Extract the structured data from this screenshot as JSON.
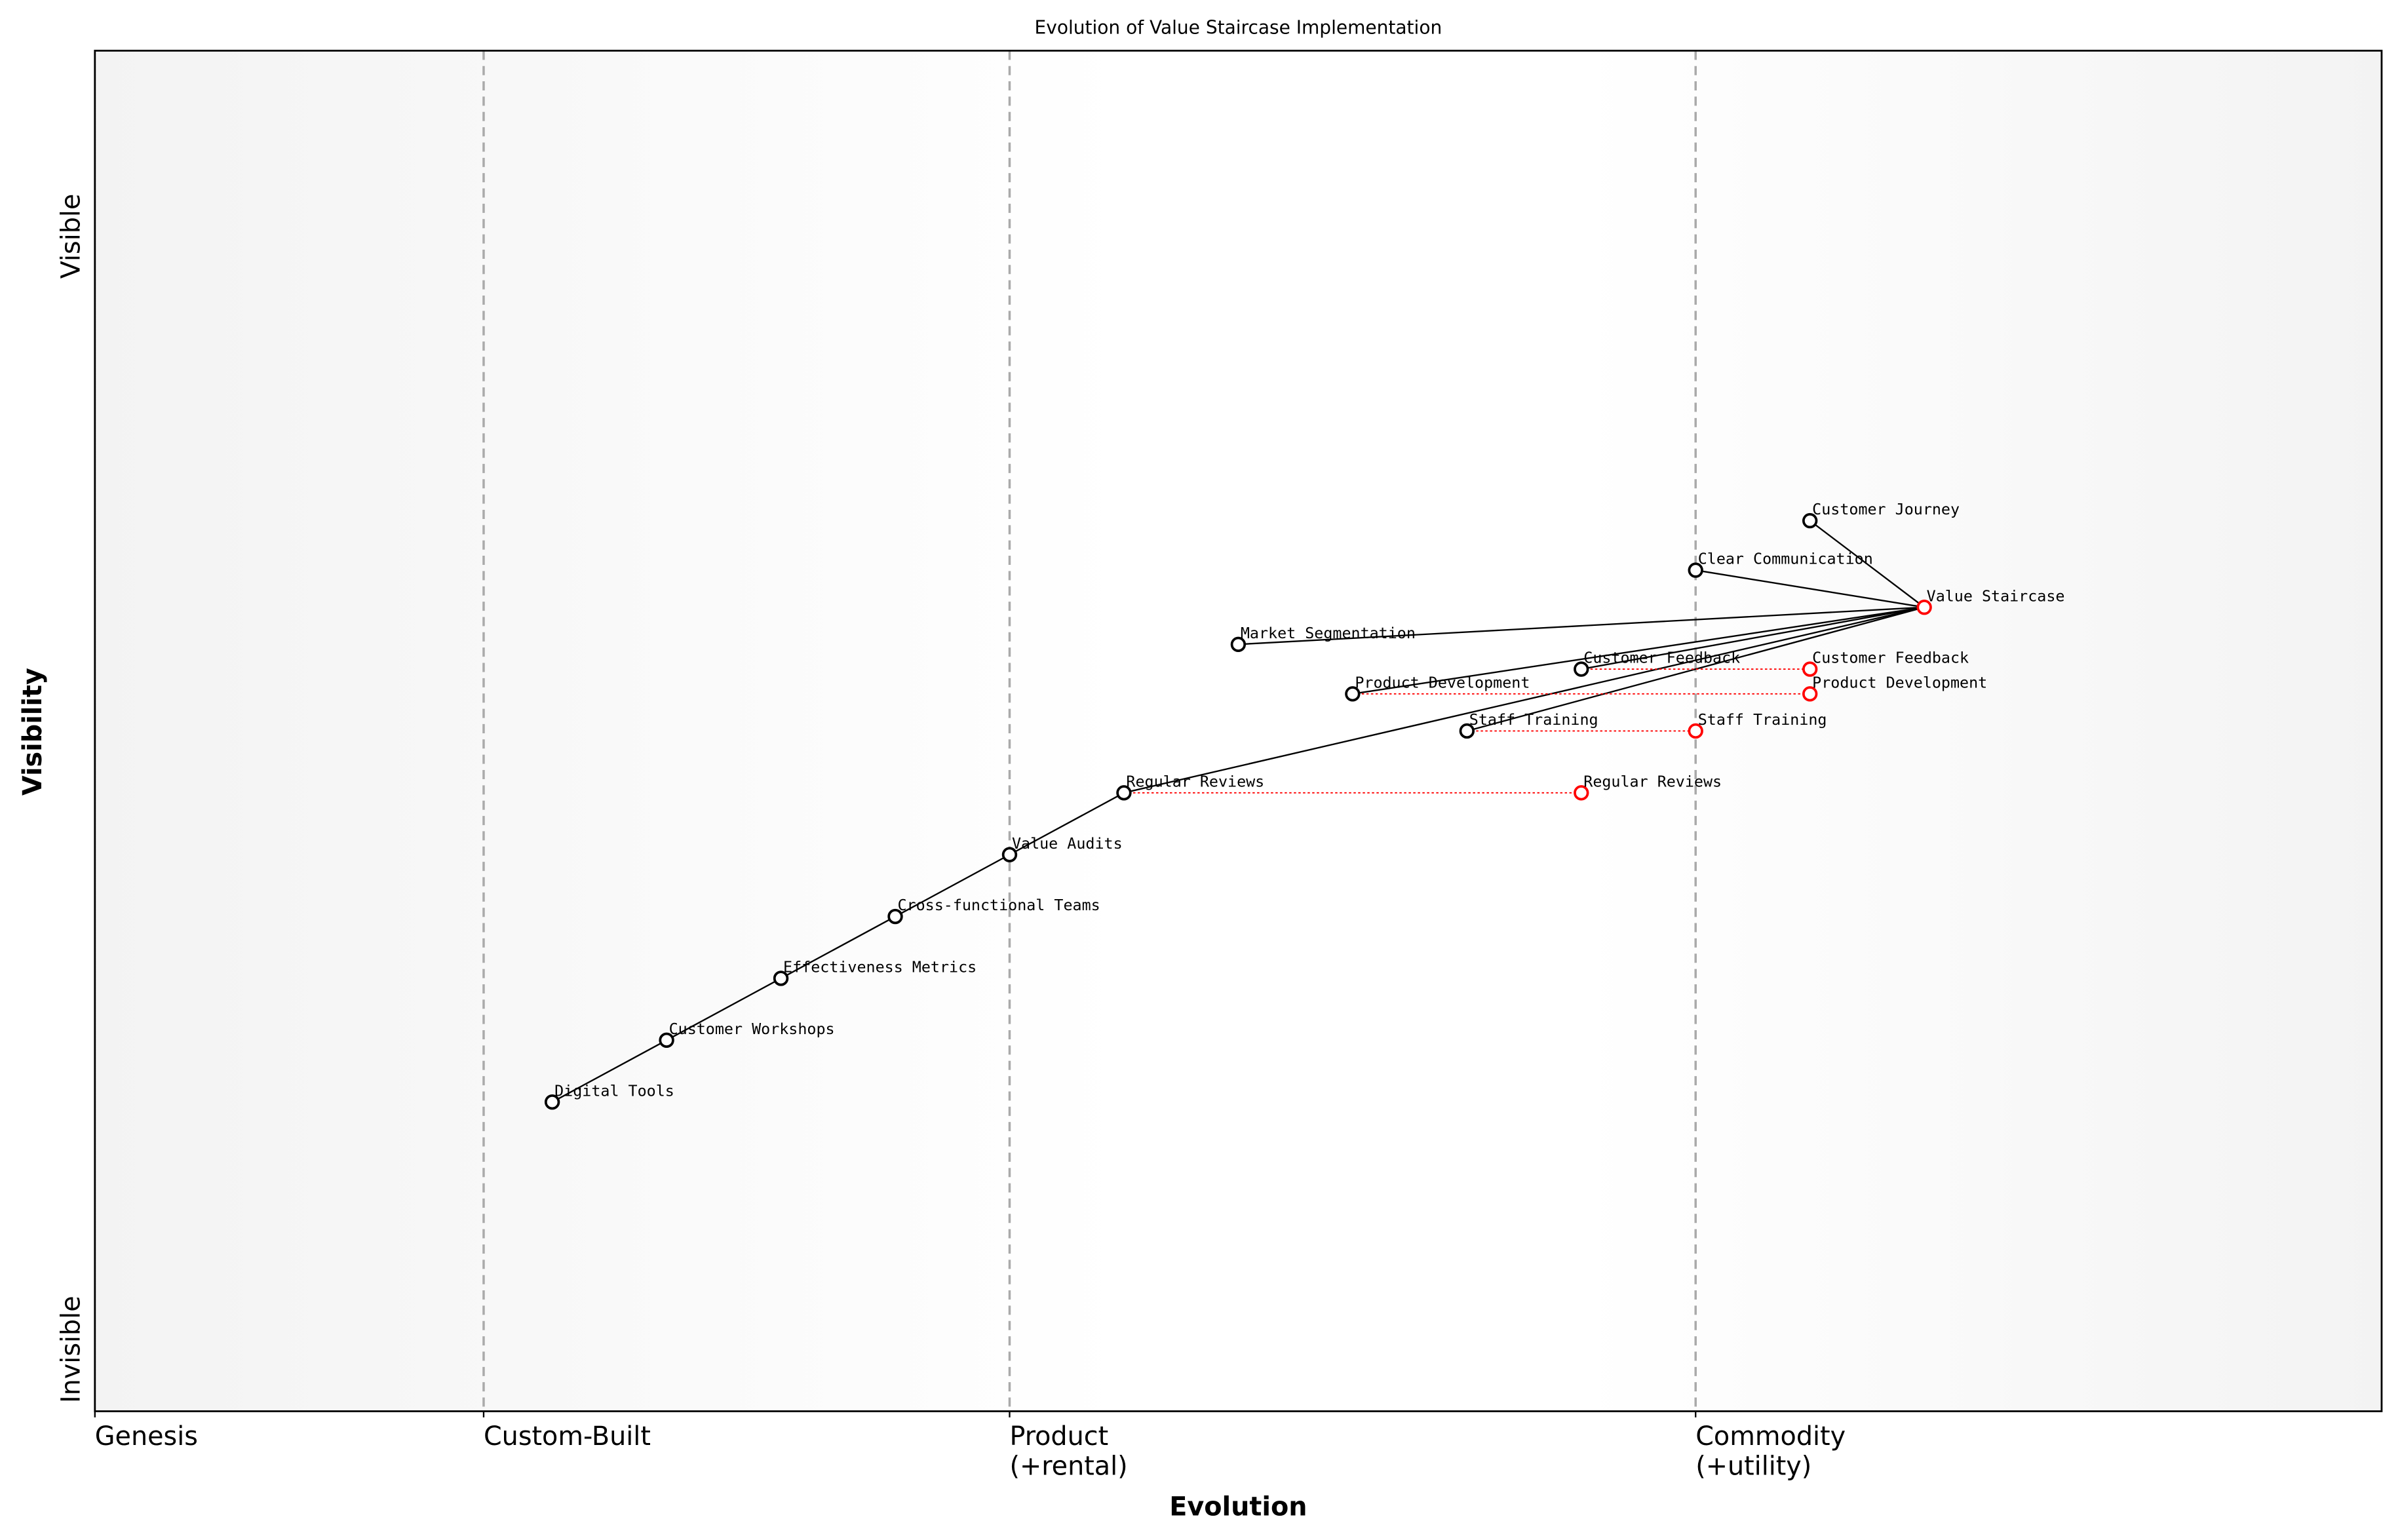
{
  "chart_data": {
    "type": "wardley",
    "title": "Evolution of Value Staircase Implementation",
    "xlabel": "Evolution",
    "ylabel": "Visibility",
    "xlim": [
      0,
      1
    ],
    "ylim": [
      -0.05,
      1.05
    ],
    "xticks": [
      {
        "value": 0,
        "label": "Genesis"
      },
      {
        "value": 0.17,
        "label": "Custom-Built"
      },
      {
        "value": 0.4,
        "label": "Product\n(+rental)"
      },
      {
        "value": 0.7,
        "label": "Commodity\n(+utility)"
      }
    ],
    "yticks": [
      {
        "value": 0,
        "label": "Invisible"
      },
      {
        "value": 0.9,
        "label": "Visible"
      }
    ],
    "node_color": "black",
    "evolved_color": "red",
    "nodes": [
      {
        "name": "Value Staircase",
        "x": 0.8,
        "y": 0.6,
        "color": "red"
      },
      {
        "name": "Customer Journey",
        "x": 0.75,
        "y": 0.67
      },
      {
        "name": "Clear Communication",
        "x": 0.7,
        "y": 0.63
      },
      {
        "name": "Market Segmentation",
        "x": 0.5,
        "y": 0.57
      },
      {
        "name": "Customer Feedback",
        "x": 0.65,
        "y": 0.55
      },
      {
        "name": "Product Development",
        "x": 0.55,
        "y": 0.53
      },
      {
        "name": "Staff Training",
        "x": 0.6,
        "y": 0.5
      },
      {
        "name": "Regular Reviews",
        "x": 0.45,
        "y": 0.45
      },
      {
        "name": "Value Audits",
        "x": 0.4,
        "y": 0.4
      },
      {
        "name": "Cross-functional Teams",
        "x": 0.35,
        "y": 0.35
      },
      {
        "name": "Effectiveness Metrics",
        "x": 0.3,
        "y": 0.3
      },
      {
        "name": "Customer Workshops",
        "x": 0.25,
        "y": 0.25
      },
      {
        "name": "Digital Tools",
        "x": 0.2,
        "y": 0.2
      }
    ],
    "evolved": [
      {
        "name": "Customer Feedback",
        "x": 0.75,
        "y": 0.55
      },
      {
        "name": "Product Development",
        "x": 0.75,
        "y": 0.53
      },
      {
        "name": "Staff Training",
        "x": 0.7,
        "y": 0.5
      },
      {
        "name": "Regular Reviews",
        "x": 0.65,
        "y": 0.45
      }
    ],
    "links": [
      [
        "Customer Journey",
        "Value Staircase"
      ],
      [
        "Clear Communication",
        "Value Staircase"
      ],
      [
        "Market Segmentation",
        "Value Staircase"
      ],
      [
        "Customer Feedback",
        "Value Staircase"
      ],
      [
        "Product Development",
        "Value Staircase"
      ],
      [
        "Staff Training",
        "Value Staircase"
      ],
      [
        "Regular Reviews",
        "Value Staircase"
      ],
      [
        "Digital Tools",
        "Customer Workshops"
      ],
      [
        "Customer Workshops",
        "Effectiveness Metrics"
      ],
      [
        "Effectiveness Metrics",
        "Cross-functional Teams"
      ],
      [
        "Cross-functional Teams",
        "Value Audits"
      ],
      [
        "Value Audits",
        "Regular Reviews"
      ]
    ]
  }
}
